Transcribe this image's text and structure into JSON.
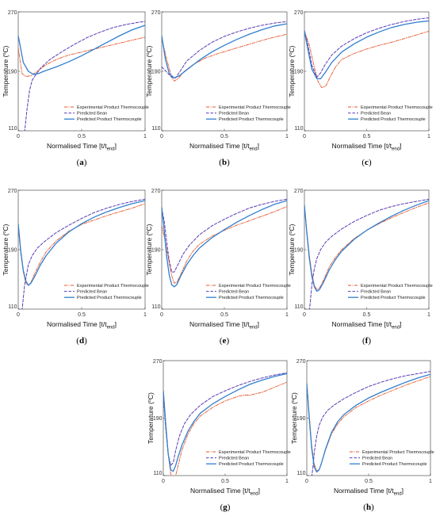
{
  "figure": {
    "legend": [
      {
        "label": "Experimental Product Thermocouple",
        "color": "#e8542a",
        "dash": "dashdot"
      },
      {
        "label": "Predicted Bean",
        "color": "#5b3bb5",
        "dash": "dash"
      },
      {
        "label": "Predicted Product Thermocouple",
        "color": "#2f7fcf",
        "dash": "solid"
      }
    ],
    "xlabel_main": "Normalised Time [t/t",
    "xlabel_sub": "end",
    "xlabel_close": "]",
    "ylabel_main": "Temperature (",
    "ylabel_sup": "o",
    "ylabel_close": "C)",
    "x_ticks": [
      "0",
      "0.5",
      "1"
    ],
    "y_ticks": [
      "110",
      "190",
      "270"
    ]
  },
  "chart_data": [
    {
      "panel": "a",
      "type": "line",
      "xlim": [
        0,
        1
      ],
      "ylim": [
        110,
        270
      ],
      "xlabel": "Normalised Time [t/tend]",
      "ylabel": "Temperature (oC)",
      "series": [
        {
          "name": "Experimental Product Thermocouple",
          "x": [
            0,
            0.03,
            0.06,
            0.1,
            0.15,
            0.22,
            0.3,
            0.4,
            0.5,
            0.6,
            0.7,
            0.8,
            0.9,
            1.0
          ],
          "y": [
            222,
            187,
            183,
            184,
            190,
            199,
            206,
            212,
            216,
            220,
            224,
            228,
            232,
            236
          ]
        },
        {
          "name": "Predicted Bean",
          "x": [
            0.05,
            0.07,
            0.09,
            0.11,
            0.14,
            0.18,
            0.25,
            0.35,
            0.45,
            0.55,
            0.65,
            0.75,
            0.85,
            0.95,
            1.0
          ],
          "y": [
            108,
            140,
            165,
            178,
            186,
            195,
            206,
            217,
            227,
            236,
            243,
            249,
            253,
            256,
            257
          ]
        },
        {
          "name": "Predicted Product Thermocouple",
          "x": [
            0,
            0.04,
            0.08,
            0.12,
            0.16,
            0.2,
            0.3,
            0.4,
            0.5,
            0.6,
            0.7,
            0.8,
            0.9,
            1.0
          ],
          "y": [
            238,
            202,
            190,
            186,
            187,
            190,
            196,
            203,
            211,
            220,
            229,
            238,
            246,
            252
          ]
        }
      ]
    },
    {
      "panel": "b",
      "type": "line",
      "xlim": [
        0,
        1
      ],
      "ylim": [
        110,
        270
      ],
      "xlabel": "Normalised Time [t/tend]",
      "ylabel": "Temperature (oC)",
      "series": [
        {
          "name": "Experimental Product Thermocouple",
          "x": [
            0,
            0.04,
            0.08,
            0.1,
            0.13,
            0.18,
            0.25,
            0.35,
            0.45,
            0.55,
            0.65,
            0.75,
            0.85,
            1.0
          ],
          "y": [
            235,
            206,
            182,
            177,
            180,
            190,
            199,
            208,
            214,
            219,
            224,
            229,
            234,
            240
          ]
        },
        {
          "name": "Predicted Bean",
          "x": [
            0,
            0.04,
            0.08,
            0.11,
            0.15,
            0.2,
            0.3,
            0.4,
            0.5,
            0.6,
            0.7,
            0.8,
            0.9,
            1.0
          ],
          "y": [
            196,
            189,
            182,
            181,
            191,
            204,
            218,
            229,
            237,
            243,
            248,
            252,
            255,
            257
          ]
        },
        {
          "name": "Predicted Product Thermocouple",
          "x": [
            0,
            0.03,
            0.06,
            0.1,
            0.14,
            0.2,
            0.3,
            0.4,
            0.5,
            0.6,
            0.7,
            0.8,
            0.9,
            1.0
          ],
          "y": [
            238,
            206,
            187,
            181,
            184,
            192,
            205,
            216,
            225,
            233,
            240,
            246,
            251,
            254
          ]
        }
      ]
    },
    {
      "panel": "c",
      "type": "line",
      "xlim": [
        0,
        1
      ],
      "ylim": [
        110,
        270
      ],
      "xlabel": "Normalised Time [t/tend]",
      "ylabel": "Temperature (oC)",
      "series": [
        {
          "name": "Experimental Product Thermocouple",
          "x": [
            0,
            0.04,
            0.08,
            0.11,
            0.14,
            0.17,
            0.2,
            0.25,
            0.3,
            0.4,
            0.5,
            0.6,
            0.7,
            0.8,
            0.9,
            1.0
          ],
          "y": [
            244,
            225,
            195,
            176,
            168,
            170,
            180,
            196,
            206,
            214,
            220,
            225,
            229,
            234,
            239,
            244
          ]
        },
        {
          "name": "Predicted Bean",
          "x": [
            0,
            0.03,
            0.06,
            0.1,
            0.13,
            0.17,
            0.22,
            0.3,
            0.4,
            0.5,
            0.6,
            0.7,
            0.8,
            0.9,
            1.0
          ],
          "y": [
            245,
            224,
            198,
            182,
            188,
            200,
            212,
            224,
            234,
            242,
            248,
            253,
            257,
            260,
            262
          ]
        },
        {
          "name": "Predicted Product Thermocouple",
          "x": [
            0,
            0.03,
            0.06,
            0.1,
            0.13,
            0.17,
            0.22,
            0.3,
            0.4,
            0.5,
            0.6,
            0.7,
            0.8,
            0.9,
            1.0
          ],
          "y": [
            244,
            218,
            193,
            180,
            180,
            189,
            202,
            216,
            227,
            236,
            243,
            249,
            253,
            256,
            258
          ]
        }
      ]
    },
    {
      "panel": "d",
      "type": "line",
      "xlim": [
        0,
        1
      ],
      "ylim": [
        110,
        270
      ],
      "xlabel": "Normalised Time [t/tend]",
      "ylabel": "Temperature (oC)",
      "series": [
        {
          "name": "Experimental Product Thermocouple",
          "x": [
            0,
            0.02,
            0.04,
            0.06,
            0.08,
            0.1,
            0.13,
            0.17,
            0.22,
            0.3,
            0.4,
            0.5,
            0.6,
            0.7,
            0.8,
            0.9,
            1.0
          ],
          "y": [
            220,
            185,
            160,
            145,
            142,
            146,
            158,
            172,
            187,
            202,
            215,
            224,
            230,
            236,
            241,
            246,
            252
          ]
        },
        {
          "name": "Predicted Bean",
          "x": [
            0.03,
            0.05,
            0.08,
            0.11,
            0.15,
            0.2,
            0.3,
            0.4,
            0.5,
            0.6,
            0.7,
            0.8,
            0.9,
            1.0
          ],
          "y": [
            108,
            142,
            170,
            182,
            192,
            200,
            213,
            223,
            232,
            240,
            246,
            251,
            255,
            258
          ]
        },
        {
          "name": "Predicted Product Thermocouple",
          "x": [
            0,
            0.02,
            0.04,
            0.06,
            0.08,
            0.1,
            0.13,
            0.17,
            0.22,
            0.3,
            0.4,
            0.5,
            0.6,
            0.7,
            0.8,
            0.9,
            1.0
          ],
          "y": [
            225,
            188,
            162,
            148,
            142,
            145,
            154,
            168,
            182,
            199,
            214,
            225,
            234,
            241,
            247,
            252,
            256
          ]
        }
      ]
    },
    {
      "panel": "e",
      "type": "line",
      "xlim": [
        0,
        1
      ],
      "ylim": [
        110,
        270
      ],
      "xlabel": "Normalised Time [t/tend]",
      "ylabel": "Temperature (oC)",
      "series": [
        {
          "name": "Experimental Product Thermocouple",
          "x": [
            0,
            0.03,
            0.06,
            0.08,
            0.1,
            0.12,
            0.15,
            0.2,
            0.25,
            0.3,
            0.4,
            0.5,
            0.6,
            0.7,
            0.8,
            0.9,
            1.0
          ],
          "y": [
            222,
            200,
            172,
            155,
            145,
            146,
            156,
            175,
            188,
            197,
            208,
            216,
            223,
            229,
            235,
            241,
            248
          ]
        },
        {
          "name": "Predicted Bean",
          "x": [
            0,
            0.02,
            0.04,
            0.06,
            0.08,
            0.1,
            0.13,
            0.17,
            0.22,
            0.3,
            0.4,
            0.5,
            0.6,
            0.7,
            0.8,
            0.9,
            1.0
          ],
          "y": [
            246,
            228,
            200,
            175,
            160,
            160,
            170,
            184,
            196,
            210,
            222,
            231,
            239,
            246,
            251,
            255,
            258
          ]
        },
        {
          "name": "Predicted Product Thermocouple",
          "x": [
            0,
            0.02,
            0.04,
            0.06,
            0.08,
            0.1,
            0.12,
            0.15,
            0.2,
            0.25,
            0.3,
            0.4,
            0.5,
            0.6,
            0.7,
            0.8,
            0.9,
            1.0
          ],
          "y": [
            247,
            215,
            180,
            156,
            143,
            140,
            143,
            154,
            170,
            182,
            192,
            206,
            217,
            227,
            236,
            244,
            251,
            256
          ]
        }
      ]
    },
    {
      "panel": "f",
      "type": "line",
      "xlim": [
        0,
        1
      ],
      "ylim": [
        110,
        270
      ],
      "xlabel": "Normalised Time [t/tend]",
      "ylabel": "Temperature (oC)",
      "series": [
        {
          "name": "Experimental Product Thermocouple",
          "x": [
            0,
            0.02,
            0.04,
            0.06,
            0.08,
            0.1,
            0.12,
            0.15,
            0.2,
            0.25,
            0.3,
            0.4,
            0.5,
            0.6,
            0.7,
            0.8,
            0.9,
            1.0
          ],
          "y": [
            250,
            215,
            182,
            158,
            142,
            136,
            138,
            148,
            167,
            180,
            190,
            205,
            216,
            225,
            233,
            240,
            247,
            253
          ]
        },
        {
          "name": "Predicted Bean",
          "x": [
            0.04,
            0.05,
            0.06,
            0.08,
            0.1,
            0.13,
            0.17,
            0.22,
            0.3,
            0.4,
            0.5,
            0.6,
            0.7,
            0.8,
            0.9,
            1.0
          ],
          "y": [
            108,
            125,
            143,
            165,
            178,
            190,
            200,
            208,
            218,
            228,
            236,
            243,
            248,
            252,
            255,
            258
          ]
        },
        {
          "name": "Predicted Product Thermocouple",
          "x": [
            0,
            0.02,
            0.04,
            0.06,
            0.08,
            0.1,
            0.12,
            0.15,
            0.2,
            0.25,
            0.3,
            0.4,
            0.5,
            0.6,
            0.7,
            0.8,
            0.9,
            1.0
          ],
          "y": [
            250,
            212,
            178,
            154,
            140,
            134,
            136,
            145,
            163,
            177,
            188,
            204,
            216,
            226,
            235,
            243,
            250,
            256
          ]
        }
      ]
    },
    {
      "panel": "g",
      "type": "line",
      "xlim": [
        0,
        1
      ],
      "ylim": [
        110,
        270
      ],
      "xlabel": "Normalised Time [t/tend]",
      "ylabel": "Temperature (oC)",
      "series": [
        {
          "name": "Experimental Product Thermocouple",
          "x": [
            0,
            0.02,
            0.04,
            0.06,
            0.08,
            0.1,
            0.12,
            0.15,
            0.2,
            0.25,
            0.3,
            0.4,
            0.5,
            0.6,
            0.65,
            0.7,
            0.8,
            0.9,
            1.0
          ],
          "y": [
            230,
            185,
            140,
            112,
            106,
            110,
            124,
            145,
            168,
            183,
            193,
            205,
            214,
            220,
            222,
            222,
            226,
            233,
            240
          ]
        },
        {
          "name": "Predicted Bean",
          "x": [
            0,
            0.02,
            0.04,
            0.06,
            0.08,
            0.1,
            0.13,
            0.17,
            0.22,
            0.3,
            0.4,
            0.5,
            0.6,
            0.7,
            0.8,
            0.9,
            1.0
          ],
          "y": [
            220,
            175,
            140,
            124,
            128,
            145,
            165,
            182,
            195,
            208,
            220,
            228,
            235,
            241,
            246,
            250,
            253
          ]
        },
        {
          "name": "Predicted Product Thermocouple",
          "x": [
            0,
            0.02,
            0.04,
            0.06,
            0.08,
            0.1,
            0.12,
            0.15,
            0.2,
            0.25,
            0.3,
            0.4,
            0.5,
            0.6,
            0.7,
            0.8,
            0.9,
            1.0
          ],
          "y": [
            228,
            180,
            140,
            118,
            116,
            124,
            136,
            152,
            172,
            186,
            197,
            210,
            220,
            229,
            237,
            243,
            248,
            252
          ]
        }
      ]
    },
    {
      "panel": "h",
      "type": "line",
      "xlim": [
        0,
        1
      ],
      "ylim": [
        110,
        270
      ],
      "xlabel": "Normalised Time [t/tend]",
      "ylabel": "Temperature (oC)",
      "series": [
        {
          "name": "Experimental Product Thermocouple",
          "x": [
            0,
            0.02,
            0.04,
            0.06,
            0.08,
            0.1,
            0.12,
            0.15,
            0.2,
            0.25,
            0.3,
            0.4,
            0.5,
            0.6,
            0.7,
            0.8,
            0.9,
            1.0
          ],
          "y": [
            240,
            195,
            152,
            126,
            117,
            118,
            128,
            145,
            168,
            182,
            192,
            205,
            214,
            222,
            229,
            236,
            242,
            248
          ]
        },
        {
          "name": "Predicted Bean",
          "x": [
            0.04,
            0.05,
            0.06,
            0.08,
            0.1,
            0.13,
            0.17,
            0.22,
            0.3,
            0.4,
            0.5,
            0.6,
            0.7,
            0.8,
            0.9,
            1.0
          ],
          "y": [
            108,
            122,
            142,
            165,
            180,
            192,
            201,
            208,
            217,
            226,
            234,
            240,
            245,
            249,
            252,
            255
          ]
        },
        {
          "name": "Predicted Product Thermocouple",
          "x": [
            0,
            0.02,
            0.04,
            0.06,
            0.08,
            0.1,
            0.12,
            0.15,
            0.2,
            0.25,
            0.3,
            0.4,
            0.5,
            0.6,
            0.7,
            0.8,
            0.9,
            1.0
          ],
          "y": [
            238,
            190,
            148,
            122,
            115,
            118,
            128,
            146,
            170,
            185,
            195,
            208,
            218,
            226,
            233,
            240,
            246,
            251
          ]
        }
      ]
    }
  ]
}
